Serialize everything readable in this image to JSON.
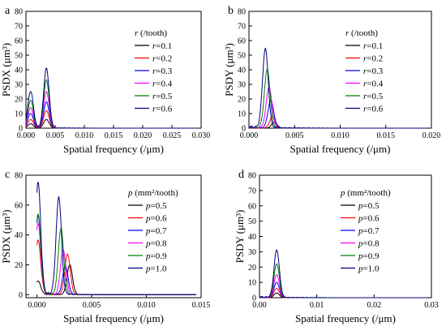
{
  "colors": [
    "#000000",
    "#ff0000",
    "#0000ff",
    "#ff00ff",
    "#008000",
    "#000080"
  ],
  "chart_data": [
    {
      "type": "line",
      "panel_label": "a",
      "xlabel": "Spatial frequency (/μm)",
      "ylabel": "PSDX (μm³)",
      "xlim": [
        0,
        0.03
      ],
      "ylim": [
        0,
        80
      ],
      "xticks": [
        "0.000",
        "0.005",
        "0.010",
        "0.015",
        "0.020",
        "0.025",
        "0.030"
      ],
      "yticks": [
        "0",
        "10",
        "20",
        "30",
        "40",
        "50",
        "60",
        "70",
        "80"
      ],
      "legend_title": "r (/tooth)",
      "legend_var": "r",
      "series": [
        {
          "name": "r=0.1",
          "peaks": [
            [
              0.0008,
              3
            ],
            [
              0.0035,
              6
            ]
          ]
        },
        {
          "name": "r=0.2",
          "peaks": [
            [
              0.0008,
              6
            ],
            [
              0.0035,
              12
            ]
          ]
        },
        {
          "name": "r=0.3",
          "peaks": [
            [
              0.0008,
              10
            ],
            [
              0.0035,
              18
            ]
          ]
        },
        {
          "name": "r=0.4",
          "peaks": [
            [
              0.0008,
              14
            ],
            [
              0.0035,
              25
            ]
          ]
        },
        {
          "name": "r=0.5",
          "peaks": [
            [
              0.0008,
              19
            ],
            [
              0.0035,
              33
            ]
          ]
        },
        {
          "name": "r=0.6",
          "peaks": [
            [
              0.0008,
              25
            ],
            [
              0.0035,
              41
            ]
          ]
        }
      ]
    },
    {
      "type": "line",
      "panel_label": "b",
      "xlabel": "Spatial frequency (/μm)",
      "ylabel": "PSDY (μm³)",
      "xlim": [
        0,
        0.02
      ],
      "ylim": [
        0,
        80
      ],
      "xticks": [
        "0.000",
        "0.005",
        "0.010",
        "0.015",
        "0.020"
      ],
      "yticks": [
        "0",
        "10",
        "20",
        "30",
        "40",
        "50",
        "60",
        "70",
        "80"
      ],
      "legend_title": "r (/tooth)",
      "legend_var": "r",
      "series": [
        {
          "name": "r=0.1",
          "peaks": [
            [
              0.0028,
              4
            ]
          ]
        },
        {
          "name": "r=0.2",
          "peaks": [
            [
              0.0026,
              8
            ]
          ]
        },
        {
          "name": "r=0.3",
          "peaks": [
            [
              0.0024,
              19
            ]
          ]
        },
        {
          "name": "r=0.4",
          "peaks": [
            [
              0.0022,
              28
            ]
          ]
        },
        {
          "name": "r=0.5",
          "peaks": [
            [
              0.002,
              40
            ]
          ]
        },
        {
          "name": "r=0.6",
          "peaks": [
            [
              0.0018,
              54
            ]
          ]
        }
      ]
    },
    {
      "type": "line",
      "panel_label": "c",
      "xlabel": "Spatial frequency (/μm)",
      "ylabel": "PSDX (μm³)",
      "xlim": [
        -0.001,
        0.015
      ],
      "ylim": [
        -2,
        80
      ],
      "xticks": [
        "0.000",
        "0.005",
        "0.010",
        "0.015"
      ],
      "yticks": [
        "0",
        "20",
        "40",
        "60",
        "80"
      ],
      "legend_title": "p (mm²/tooth)",
      "legend_var": "p",
      "series": [
        {
          "name": "p=0.5",
          "peaks": [
            [
              0.0001,
              9
            ],
            [
              0.003,
              20
            ]
          ]
        },
        {
          "name": "p=0.6",
          "peaks": [
            [
              0.0001,
              36
            ],
            [
              0.0028,
              27
            ]
          ]
        },
        {
          "name": "p=0.7",
          "peaks": [
            [
              0.0001,
              52
            ],
            [
              0.0026,
              19
            ]
          ]
        },
        {
          "name": "p=0.8",
          "peaks": [
            [
              0.0001,
              47
            ],
            [
              0.0024,
              30
            ]
          ]
        },
        {
          "name": "p=0.9",
          "peaks": [
            [
              0.0001,
              53
            ],
            [
              0.0022,
              44
            ]
          ]
        },
        {
          "name": "p=1.0",
          "peaks": [
            [
              0.0001,
              74
            ],
            [
              0.002,
              65
            ]
          ]
        }
      ]
    },
    {
      "type": "line",
      "panel_label": "d",
      "xlabel": "Spatial frequency (/μm)",
      "ylabel": "PSDY (μm³)",
      "xlim": [
        0,
        0.03
      ],
      "ylim": [
        0,
        80
      ],
      "xticks": [
        "0.00",
        "0.01",
        "0.02",
        "0.03"
      ],
      "yticks": [
        "0",
        "10",
        "20",
        "30",
        "40",
        "50",
        "60",
        "70",
        "80"
      ],
      "legend_title": "p (mm²/tooth)",
      "legend_var": "p",
      "series": [
        {
          "name": "p=0.5",
          "peaks": [
            [
              0.003,
              3
            ]
          ]
        },
        {
          "name": "p=0.6",
          "peaks": [
            [
              0.003,
              6
            ]
          ]
        },
        {
          "name": "p=0.7",
          "peaks": [
            [
              0.003,
              10
            ]
          ]
        },
        {
          "name": "p=0.8",
          "peaks": [
            [
              0.003,
              15
            ]
          ]
        },
        {
          "name": "p=0.9",
          "peaks": [
            [
              0.003,
              22
            ]
          ]
        },
        {
          "name": "p=1.0",
          "peaks": [
            [
              0.003,
              31
            ]
          ]
        }
      ]
    }
  ]
}
